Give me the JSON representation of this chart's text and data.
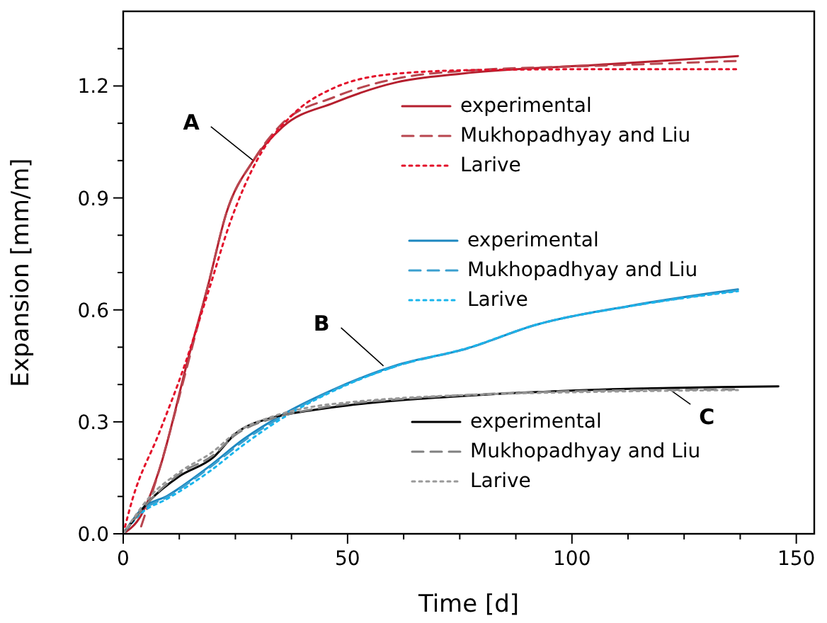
{
  "chart_data": {
    "type": "line",
    "xlabel": "Time [d]",
    "ylabel": "Expansion [mm/m]",
    "xlim": [
      0,
      154
    ],
    "ylim": [
      0,
      1.4
    ],
    "xticks": [
      0,
      {
        "value": 12.5,
        "label": null
      },
      {
        "value": 25,
        "label": null
      },
      {
        "value": 37.5,
        "label": null
      },
      50,
      {
        "value": 62.5,
        "label": null
      },
      {
        "value": 75,
        "label": null
      },
      {
        "value": 87.5,
        "label": null
      },
      100,
      {
        "value": 112.5,
        "label": null
      },
      {
        "value": 125,
        "label": null
      },
      {
        "value": 137.5,
        "label": null
      },
      150
    ],
    "yticks": [
      {
        "value": 0,
        "label": "0.0"
      },
      {
        "value": 0.1,
        "label": null
      },
      {
        "value": 0.2,
        "label": null
      },
      0.3,
      {
        "value": 0.4,
        "label": null
      },
      {
        "value": 0.5,
        "label": null
      },
      0.6,
      {
        "value": 0.7,
        "label": null
      },
      {
        "value": 0.8,
        "label": null
      },
      0.9,
      {
        "value": 1.0,
        "label": null
      },
      {
        "value": 1.1,
        "label": null
      },
      1.2,
      {
        "value": 1.3,
        "label": null
      }
    ],
    "legend": "right",
    "marker": "none",
    "annotations": [
      {
        "text": "A",
        "x": 29,
        "y": 1.0
      },
      {
        "text": "B",
        "x": 58,
        "y": 0.45
      },
      {
        "text": "C",
        "x": 122,
        "y": 0.385
      }
    ],
    "series": [
      {
        "name": "experimental",
        "color": "#b51f2e",
        "line_style": "solid",
        "x": [
          0,
          4,
          8,
          14.5,
          19,
          23,
          29,
          35.5,
          47,
          61,
          75.5,
          108,
          137
        ],
        "values": [
          0,
          0.05,
          0.17,
          0.47,
          0.67,
          0.86,
          1.0,
          1.09,
          1.155,
          1.21,
          1.233,
          1.258,
          1.28
        ]
      },
      {
        "name": "Mukhopadhyay and Liu",
        "color": "#b8464f",
        "line_style": "dashed",
        "x": [
          4,
          8,
          14.5,
          19,
          23,
          29,
          35.5,
          47,
          61,
          75.5,
          108,
          137
        ],
        "values": [
          0.02,
          0.17,
          0.46,
          0.67,
          0.86,
          1.0,
          1.1,
          1.17,
          1.22,
          1.24,
          1.255,
          1.267
        ]
      },
      {
        "name": "Larive",
        "color": "#e3102a",
        "line_style": "dotted",
        "x": [
          0,
          2,
          8,
          13.5,
          19,
          24,
          30,
          37.5,
          47,
          61,
          80,
          110,
          137
        ],
        "values": [
          0,
          0.09,
          0.27,
          0.445,
          0.65,
          0.84,
          1.005,
          1.12,
          1.195,
          1.233,
          1.243,
          1.245,
          1.245
        ]
      },
      {
        "name": "experimental",
        "color": "#1c87c0",
        "line_style": "solid",
        "x": [
          0,
          4,
          10,
          19,
          27,
          35.5,
          46,
          61,
          76.5,
          92,
          113,
          137
        ],
        "values": [
          0,
          0.065,
          0.103,
          0.179,
          0.255,
          0.319,
          0.382,
          0.452,
          0.496,
          0.56,
          0.611,
          0.655
        ]
      },
      {
        "name": "Mukhopadhyay and Liu",
        "color": "#3a9fcf",
        "line_style": "dashed",
        "x": [
          0,
          4,
          10,
          19,
          27,
          35.5,
          46,
          61,
          76.5,
          92,
          113,
          137
        ],
        "values": [
          0,
          0.06,
          0.1,
          0.175,
          0.25,
          0.315,
          0.38,
          0.45,
          0.496,
          0.56,
          0.61,
          0.652
        ]
      },
      {
        "name": "Larive",
        "color": "#19b5ec",
        "line_style": "dotted",
        "x": [
          0,
          4,
          10,
          19,
          27,
          35.5,
          46,
          61,
          76.5,
          92,
          113,
          137
        ],
        "values": [
          0,
          0.055,
          0.095,
          0.165,
          0.24,
          0.31,
          0.378,
          0.45,
          0.497,
          0.56,
          0.61,
          0.65
        ]
      },
      {
        "name": "experimental",
        "color": "#000000",
        "line_style": "solid",
        "x": [
          0,
          6,
          12.5,
          20,
          25,
          33.5,
          42,
          50,
          61,
          76.5,
          103,
          146
        ],
        "values": [
          0,
          0.09,
          0.154,
          0.204,
          0.268,
          0.312,
          0.331,
          0.344,
          0.357,
          0.37,
          0.385,
          0.395
        ]
      },
      {
        "name": "Mukhopadhyay and Liu",
        "color": "#808080",
        "line_style": "dashed",
        "x": [
          0,
          6,
          12.5,
          20,
          25,
          33.5,
          42,
          50,
          61,
          76.5,
          103,
          137
        ],
        "values": [
          0,
          0.09,
          0.16,
          0.21,
          0.265,
          0.31,
          0.333,
          0.348,
          0.36,
          0.372,
          0.383,
          0.387
        ]
      },
      {
        "name": "Larive",
        "color": "#999999",
        "line_style": "dotted",
        "x": [
          0,
          6,
          12.5,
          20,
          25,
          33.5,
          42,
          50,
          61,
          76.5,
          103,
          137
        ],
        "values": [
          0,
          0.1,
          0.165,
          0.22,
          0.27,
          0.315,
          0.34,
          0.352,
          0.363,
          0.372,
          0.38,
          0.385
        ]
      }
    ]
  }
}
